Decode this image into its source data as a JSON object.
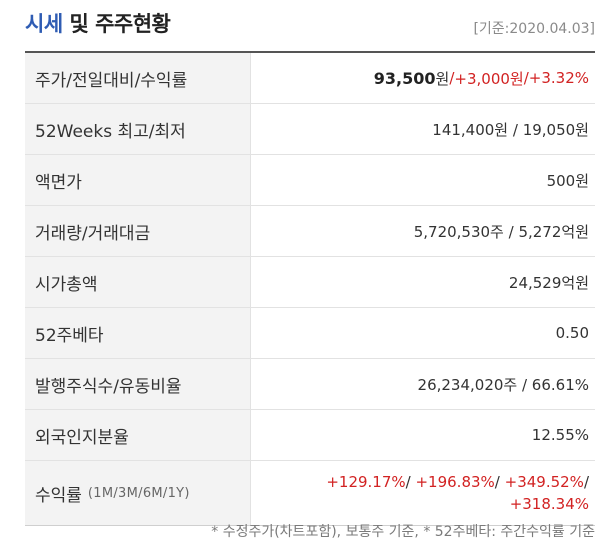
{
  "header": {
    "title_accent": "시세",
    "title_rest": " 및 주주현황",
    "date": "[기준:2020.04.03]"
  },
  "rows": {
    "price": {
      "label": "주가/전일대비/수익률",
      "price": "93,500",
      "price_unit": "원",
      "sep1": " / ",
      "change": "+3,000원",
      "sep2": " / ",
      "change_pct": "+3.32%"
    },
    "weeks52": {
      "label": "52Weeks 최고/최저",
      "value": "141,400원 / 19,050원"
    },
    "par": {
      "label": "액면가",
      "value": "500원"
    },
    "volume": {
      "label": "거래량/거래대금",
      "value": "5,720,530주 / 5,272억원"
    },
    "mktcap": {
      "label": "시가총액",
      "value": "24,529억원"
    },
    "beta": {
      "label": "52주베타",
      "value": "0.50"
    },
    "shares": {
      "label": "발행주식수/유동비율",
      "value": "26,234,020주 / 66.61%"
    },
    "foreign": {
      "label": "외국인지분율",
      "value": "12.55%"
    },
    "returns": {
      "label": "수익률",
      "label_sub": "(1M/3M/6M/1Y)",
      "r1m": "+129.17%",
      "s1": "/ ",
      "r3m": "+196.83%",
      "s2": "/ ",
      "r6m": "+349.52%",
      "s3": "/",
      "r1y": "+318.34%"
    }
  },
  "footnote": "* 수정주가(차트포함), 보통주 기준, * 52주베타: 주간수익률 기준",
  "colors": {
    "accent": "#2f5cb3",
    "up": "#d22222",
    "label_bg": "#f3f3f3"
  }
}
